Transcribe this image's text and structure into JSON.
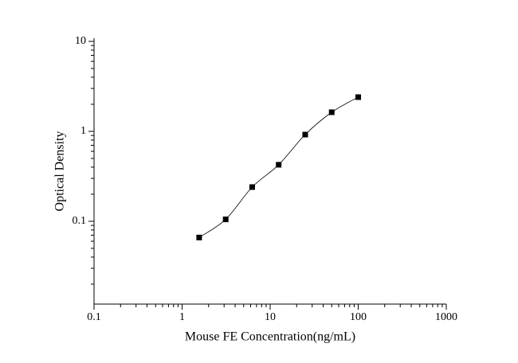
{
  "chart_data": {
    "type": "scatter",
    "x_label": "Mouse FE Concentration(ng/mL)",
    "y_label": "Optical Density",
    "x": [
      1.5625,
      3.125,
      6.25,
      12.5,
      25,
      50,
      100
    ],
    "series": [
      {
        "color": "#000000",
        "values": [
          0.066,
          0.105,
          0.24,
          0.425,
          0.92,
          1.63,
          2.4
        ]
      }
    ],
    "xscale": "log",
    "yscale": "log",
    "xlim": [
      0.1,
      1000
    ],
    "ylim": [
      0.012,
      10
    ],
    "xticks": [
      0.1,
      1,
      10,
      100,
      1000
    ],
    "yticks": [
      0.1,
      1,
      10
    ],
    "fit_curve": true
  }
}
